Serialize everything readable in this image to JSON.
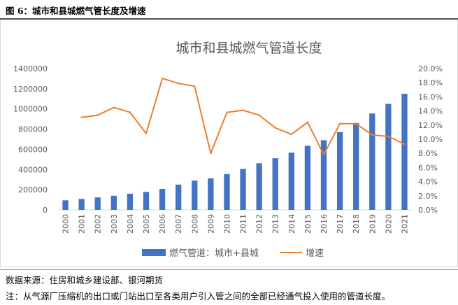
{
  "caption": "图 6：城市和县城燃气管长度及增速",
  "source_note": "数据来源：住房和城乡建设部、银河期货",
  "definition_note": "注：从气源厂压缩机的出口或门站出口至各类用户引入管之间的全部已经通气投入使用的管道长度。",
  "chart_data": {
    "type": "bar+line",
    "title": "城市和县城燃气管道长度",
    "categories": [
      "2000",
      "2001",
      "2002",
      "2003",
      "2004",
      "2005",
      "2006",
      "2007",
      "2008",
      "2009",
      "2010",
      "2011",
      "2012",
      "2013",
      "2014",
      "2015",
      "2016",
      "2017",
      "2018",
      "2019",
      "2020",
      "2021"
    ],
    "series": [
      {
        "name": "燃气管道：城市+县城",
        "type": "bar",
        "axis": "left",
        "color": "#4472c4",
        "values": [
          95000,
          108000,
          123000,
          140000,
          160000,
          178000,
          208000,
          250000,
          290000,
          312000,
          355000,
          405000,
          462000,
          512000,
          567000,
          635000,
          690000,
          770000,
          860000,
          955000,
          1050000,
          1150000
        ]
      },
      {
        "name": "增速",
        "type": "line",
        "axis": "right",
        "color": "#ed7d31",
        "values": [
          null,
          13.1,
          13.4,
          14.5,
          13.8,
          10.8,
          18.6,
          17.9,
          17.5,
          8.0,
          13.8,
          14.1,
          13.4,
          11.6,
          10.7,
          12.4,
          7.8,
          12.2,
          12.2,
          10.6,
          10.4,
          9.3
        ]
      }
    ],
    "yleft": {
      "min": 0,
      "max": 1400000,
      "step": 200000,
      "ticks": [
        "0",
        "200000",
        "400000",
        "600000",
        "800000",
        "1000000",
        "1200000",
        "1400000"
      ]
    },
    "yright": {
      "min": 0,
      "max": 20,
      "step": 2,
      "ticks": [
        "0.0%",
        "2.0%",
        "4.0%",
        "6.0%",
        "8.0%",
        "10.0%",
        "12.0%",
        "14.0%",
        "16.0%",
        "18.0%",
        "20.0%"
      ]
    },
    "legend_position": "bottom",
    "grid": false
  }
}
